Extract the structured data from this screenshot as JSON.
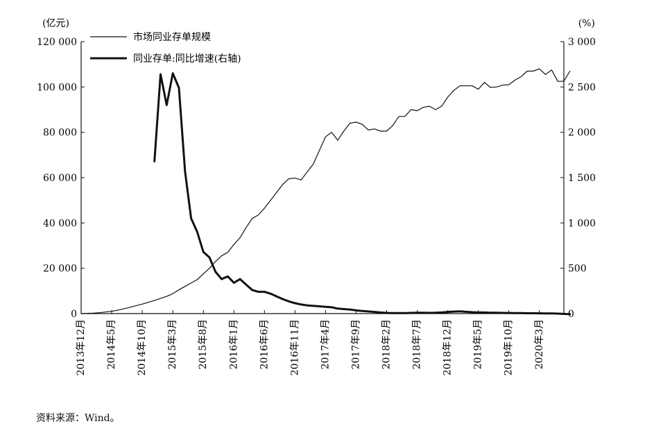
{
  "chart_data": {
    "type": "line",
    "left_unit": "(亿元)",
    "right_unit": "(%)",
    "left_ylim": [
      0,
      120000
    ],
    "right_ylim": [
      0,
      3000
    ],
    "left_ticks": [
      {
        "value": 0,
        "label": "0"
      },
      {
        "value": 20000,
        "label": "20 000"
      },
      {
        "value": 40000,
        "label": "40 000"
      },
      {
        "value": 60000,
        "label": "60 000"
      },
      {
        "value": 80000,
        "label": "80 000"
      },
      {
        "value": 100000,
        "label": "100 000"
      },
      {
        "value": 120000,
        "label": "120 000"
      }
    ],
    "right_ticks": [
      {
        "value": 0,
        "label": "0"
      },
      {
        "value": 500,
        "label": "500"
      },
      {
        "value": 1000,
        "label": "1 000"
      },
      {
        "value": 1500,
        "label": "1 500"
      },
      {
        "value": 2000,
        "label": "2 000"
      },
      {
        "value": 2500,
        "label": "2 500"
      },
      {
        "value": 3000,
        "label": "3 000"
      }
    ],
    "x_start": "2013-12",
    "x_end": "2020-07",
    "x_ticks": [
      {
        "month": "2013-12",
        "label": "2013年12月"
      },
      {
        "month": "2014-05",
        "label": "2014年5月"
      },
      {
        "month": "2014-10",
        "label": "2014年10月"
      },
      {
        "month": "2015-03",
        "label": "2015年3月"
      },
      {
        "month": "2015-08",
        "label": "2015年8月"
      },
      {
        "month": "2016-01",
        "label": "2016年1月"
      },
      {
        "month": "2016-06",
        "label": "2016年6月"
      },
      {
        "month": "2016-11",
        "label": "2016年11月"
      },
      {
        "month": "2017-04",
        "label": "2017年4月"
      },
      {
        "month": "2017-09",
        "label": "2017年9月"
      },
      {
        "month": "2018-02",
        "label": "2018年2月"
      },
      {
        "month": "2018-07",
        "label": "2018年7月"
      },
      {
        "month": "2018-12",
        "label": "2018年12月"
      },
      {
        "month": "2019-05",
        "label": "2019年5月"
      },
      {
        "month": "2019-10",
        "label": "2019年10月"
      },
      {
        "month": "2020-03",
        "label": "2020年3月"
      }
    ],
    "legend_position": "top-left",
    "grid": false,
    "series": [
      {
        "name": "市场同业存单规模",
        "axis": "left",
        "style": "thin",
        "points": [
          [
            "2013-12",
            0
          ],
          [
            "2014-01",
            100
          ],
          [
            "2014-02",
            200
          ],
          [
            "2014-03",
            400
          ],
          [
            "2014-04",
            700
          ],
          [
            "2014-05",
            1000
          ],
          [
            "2014-06",
            1500
          ],
          [
            "2014-07",
            2100
          ],
          [
            "2014-08",
            2800
          ],
          [
            "2014-09",
            3500
          ],
          [
            "2014-10",
            4200
          ],
          [
            "2014-11",
            5000
          ],
          [
            "2014-12",
            5800
          ],
          [
            "2015-01",
            6700
          ],
          [
            "2015-02",
            7600
          ],
          [
            "2015-03",
            8800
          ],
          [
            "2015-04",
            10500
          ],
          [
            "2015-05",
            12000
          ],
          [
            "2015-06",
            13500
          ],
          [
            "2015-07",
            15000
          ],
          [
            "2015-08",
            17500
          ],
          [
            "2015-09",
            20000
          ],
          [
            "2015-10",
            23000
          ],
          [
            "2015-11",
            25500
          ],
          [
            "2015-12",
            27000
          ],
          [
            "2016-01",
            30500
          ],
          [
            "2016-02",
            33500
          ],
          [
            "2016-03",
            38000
          ],
          [
            "2016-04",
            42000
          ],
          [
            "2016-05",
            43500
          ],
          [
            "2016-06",
            46500
          ],
          [
            "2016-07",
            50000
          ],
          [
            "2016-08",
            53500
          ],
          [
            "2016-09",
            57000
          ],
          [
            "2016-10",
            59500
          ],
          [
            "2016-11",
            59800
          ],
          [
            "2016-12",
            59000
          ],
          [
            "2017-01",
            62500
          ],
          [
            "2017-02",
            66000
          ],
          [
            "2017-03",
            72000
          ],
          [
            "2017-04",
            78000
          ],
          [
            "2017-05",
            80000
          ],
          [
            "2017-06",
            76500
          ],
          [
            "2017-07",
            80500
          ],
          [
            "2017-08",
            84000
          ],
          [
            "2017-09",
            84500
          ],
          [
            "2017-10",
            83500
          ],
          [
            "2017-11",
            81000
          ],
          [
            "2017-12",
            81500
          ],
          [
            "2018-01",
            80500
          ],
          [
            "2018-02",
            80500
          ],
          [
            "2018-03",
            83000
          ],
          [
            "2018-04",
            87000
          ],
          [
            "2018-05",
            87000
          ],
          [
            "2018-06",
            90000
          ],
          [
            "2018-07",
            89500
          ],
          [
            "2018-08",
            91000
          ],
          [
            "2018-09",
            91500
          ],
          [
            "2018-10",
            90000
          ],
          [
            "2018-11",
            91500
          ],
          [
            "2018-12",
            95500
          ],
          [
            "2019-01",
            98500
          ],
          [
            "2019-02",
            100500
          ],
          [
            "2019-03",
            100500
          ],
          [
            "2019-04",
            100500
          ],
          [
            "2019-05",
            99000
          ],
          [
            "2019-06",
            102000
          ],
          [
            "2019-07",
            99800
          ],
          [
            "2019-08",
            100000
          ],
          [
            "2019-09",
            100800
          ],
          [
            "2019-10",
            101000
          ],
          [
            "2019-11",
            103000
          ],
          [
            "2019-12",
            104500
          ],
          [
            "2020-01",
            107000
          ],
          [
            "2020-02",
            107000
          ],
          [
            "2020-03",
            108000
          ],
          [
            "2020-04",
            105500
          ],
          [
            "2020-05",
            107500
          ],
          [
            "2020-06",
            102500
          ],
          [
            "2020-07",
            102500
          ],
          [
            "2020-08",
            107000
          ]
        ]
      },
      {
        "name": "同业存单:同比增速(右轴)",
        "axis": "right",
        "style": "thick",
        "points": [
          [
            "2014-12",
            1680
          ],
          [
            "2015-01",
            2640
          ],
          [
            "2015-02",
            2300
          ],
          [
            "2015-03",
            2650
          ],
          [
            "2015-04",
            2490
          ],
          [
            "2015-05",
            1570
          ],
          [
            "2015-06",
            1050
          ],
          [
            "2015-07",
            900
          ],
          [
            "2015-08",
            680
          ],
          [
            "2015-09",
            620
          ],
          [
            "2015-10",
            460
          ],
          [
            "2015-11",
            380
          ],
          [
            "2015-12",
            410
          ],
          [
            "2016-01",
            340
          ],
          [
            "2016-02",
            380
          ],
          [
            "2016-03",
            320
          ],
          [
            "2016-04",
            260
          ],
          [
            "2016-05",
            240
          ],
          [
            "2016-06",
            240
          ],
          [
            "2016-07",
            220
          ],
          [
            "2016-08",
            190
          ],
          [
            "2016-09",
            160
          ],
          [
            "2016-10",
            135
          ],
          [
            "2016-11",
            115
          ],
          [
            "2016-12",
            100
          ],
          [
            "2017-01",
            90
          ],
          [
            "2017-02",
            85
          ],
          [
            "2017-03",
            80
          ],
          [
            "2017-04",
            75
          ],
          [
            "2017-05",
            70
          ],
          [
            "2017-06",
            55
          ],
          [
            "2017-07",
            50
          ],
          [
            "2017-08",
            45
          ],
          [
            "2017-09",
            35
          ],
          [
            "2017-10",
            28
          ],
          [
            "2017-11",
            24
          ],
          [
            "2017-12",
            18
          ],
          [
            "2018-01",
            12
          ],
          [
            "2018-02",
            8
          ],
          [
            "2018-03",
            5
          ],
          [
            "2018-04",
            5
          ],
          [
            "2018-05",
            6
          ],
          [
            "2018-06",
            8
          ],
          [
            "2018-07",
            10
          ],
          [
            "2018-08",
            9
          ],
          [
            "2018-09",
            8
          ],
          [
            "2018-10",
            9
          ],
          [
            "2018-11",
            12
          ],
          [
            "2018-12",
            18
          ],
          [
            "2019-01",
            22
          ],
          [
            "2019-02",
            25
          ],
          [
            "2019-03",
            20
          ],
          [
            "2019-04",
            15
          ],
          [
            "2019-05",
            12
          ],
          [
            "2019-06",
            12
          ],
          [
            "2019-07",
            10
          ],
          [
            "2019-08",
            9
          ],
          [
            "2019-09",
            8
          ],
          [
            "2019-10",
            7
          ],
          [
            "2019-11",
            6
          ],
          [
            "2019-12",
            5
          ],
          [
            "2020-01",
            4
          ],
          [
            "2020-02",
            4
          ],
          [
            "2020-03",
            3
          ],
          [
            "2020-04",
            2
          ],
          [
            "2020-05",
            2
          ],
          [
            "2020-06",
            0
          ],
          [
            "2020-07",
            -4
          ],
          [
            "2020-08",
            -6
          ]
        ]
      }
    ]
  },
  "source_note": "资料来源：Wind。"
}
